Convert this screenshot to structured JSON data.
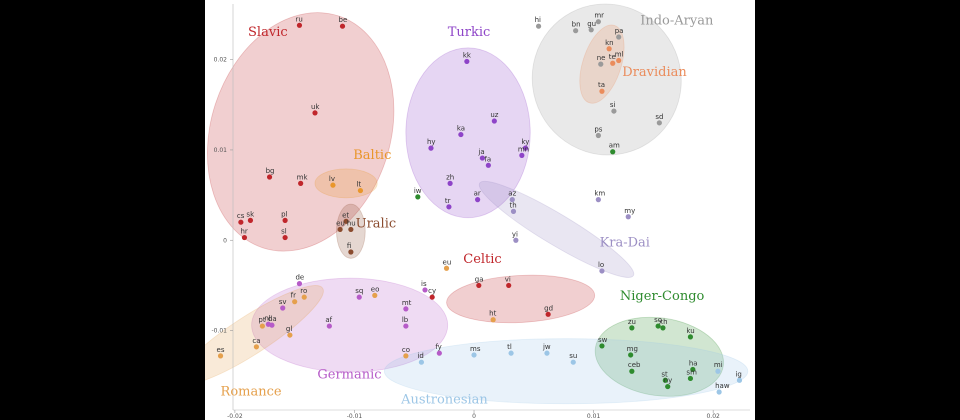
{
  "colors": {
    "Slavic": "#c0262b",
    "Baltic": "#e9962b",
    "Uralic": "#8a4b2e",
    "Turkic": "#8e44c8",
    "Indo-Aryan": "#9a9a9a",
    "Dravidian": "#ea8c5c",
    "Kra-Dai": "#9c8fc4",
    "Celtic": "#c0262b",
    "Germanic": "#b65bc8",
    "Romance": "#e5a04c",
    "Niger-Congo": "#2e8b2e",
    "Austronesian": "#9cc6e6"
  },
  "chart_data": {
    "type": "scatter",
    "xlim": [
      -0.0225,
      0.0235
    ],
    "ylim": [
      -0.0199,
      0.0266
    ],
    "grid": false,
    "x_ticks": [
      {
        "value": -0.02,
        "label": "-0.02"
      },
      {
        "value": -0.01,
        "label": "-0.01"
      },
      {
        "value": 0,
        "label": "0"
      },
      {
        "value": 0.01,
        "label": "0.01"
      },
      {
        "value": 0.02,
        "label": "0.02"
      }
    ],
    "y_ticks": [
      {
        "value": 0.02,
        "label": "0.02"
      },
      {
        "value": 0.01,
        "label": "0.01"
      },
      {
        "value": 0,
        "label": "0"
      },
      {
        "value": -0.01,
        "label": "-0.01"
      }
    ],
    "groups": [
      {
        "name": "Slavic",
        "label_at": [
          -0.0189,
          0.0226
        ],
        "ellipse": {
          "cx": -0.0145,
          "cy": 0.012,
          "rx": 0.0075,
          "ry": 0.0135,
          "rotate": 18
        }
      },
      {
        "name": "Baltic",
        "label_at": [
          -0.0101,
          0.009
        ],
        "ellipse": {
          "cx": -0.0107,
          "cy": 0.0063,
          "rx": 0.0026,
          "ry": 0.0016,
          "rotate": 0
        }
      },
      {
        "name": "Uralic",
        "label_at": [
          -0.0099,
          0.0014
        ],
        "ellipse": {
          "cx": -0.0103,
          "cy": 0.001,
          "rx": 0.0012,
          "ry": 0.003,
          "rotate": 0
        }
      },
      {
        "name": "Turkic",
        "label_at": [
          -0.0022,
          0.0226
        ],
        "ellipse": {
          "cx": -0.0005,
          "cy": 0.0119,
          "rx": 0.0052,
          "ry": 0.0094,
          "rotate": 0
        }
      },
      {
        "name": "Indo-Aryan",
        "label_at": [
          0.0139,
          0.0239
        ],
        "ellipse": {
          "cx": 0.0111,
          "cy": 0.0178,
          "rx": 0.0062,
          "ry": 0.0084,
          "rotate": -28
        }
      },
      {
        "name": "Dravidian",
        "label_at": [
          0.0124,
          0.0182
        ],
        "ellipse": {
          "cx": 0.0107,
          "cy": 0.0195,
          "rx": 0.0016,
          "ry": 0.0045,
          "rotate": 18
        }
      },
      {
        "name": "Kra-Dai",
        "label_at": [
          0.0105,
          -0.0007
        ],
        "ellipse": {
          "cx": 0.0069,
          "cy": 0.0012,
          "rx": 0.0075,
          "ry": 0.0017,
          "rotate": 31
        }
      },
      {
        "name": "Celtic",
        "label_at": [
          -0.0009,
          -0.0025
        ],
        "ellipse": {
          "cx": 0.0039,
          "cy": -0.0065,
          "rx": 0.0062,
          "ry": 0.0026,
          "rotate": -3
        }
      },
      {
        "name": "Germanic",
        "label_at": [
          -0.0131,
          -0.0153
        ],
        "ellipse": {
          "cx": -0.0104,
          "cy": -0.0094,
          "rx": 0.0082,
          "ry": 0.0052,
          "rotate": 0
        }
      },
      {
        "name": "Romance",
        "label_at": [
          -0.0212,
          -0.0172
        ],
        "ellipse": {
          "cx": -0.0187,
          "cy": -0.0105,
          "rx": 0.0072,
          "ry": 0.0021,
          "rotate": -33
        }
      },
      {
        "name": "Niger-Congo",
        "label_at": [
          0.0122,
          -0.0066
        ],
        "ellipse": {
          "cx": 0.0155,
          "cy": -0.0129,
          "rx": 0.0054,
          "ry": 0.0043,
          "rotate": 8
        }
      },
      {
        "name": "Austronesian",
        "label_at": [
          -0.0061,
          -0.0181
        ],
        "ellipse": {
          "cx": 0.0077,
          "cy": -0.0145,
          "rx": 0.0152,
          "ry": 0.0036,
          "rotate": 0
        }
      }
    ],
    "points": [
      {
        "label": "ru",
        "x": -0.0146,
        "y": 0.0238,
        "group": "Slavic"
      },
      {
        "label": "be",
        "x": -0.011,
        "y": 0.0237,
        "group": "Slavic"
      },
      {
        "label": "uk",
        "x": -0.0133,
        "y": 0.0141,
        "group": "Slavic"
      },
      {
        "label": "bg",
        "x": -0.0171,
        "y": 0.007,
        "group": "Slavic"
      },
      {
        "label": "mk",
        "x": -0.0145,
        "y": 0.0063,
        "group": "Slavic"
      },
      {
        "label": "cs",
        "x": -0.0195,
        "y": 0.002,
        "group": "Slavic"
      },
      {
        "label": "sk",
        "x": -0.0187,
        "y": 0.0022,
        "group": "Slavic"
      },
      {
        "label": "pl",
        "x": -0.0158,
        "y": 0.0022,
        "group": "Slavic"
      },
      {
        "label": "hr",
        "x": -0.0192,
        "y": 0.0003,
        "group": "Slavic"
      },
      {
        "label": "sl",
        "x": -0.0158,
        "y": 0.0003,
        "group": "Slavic"
      },
      {
        "label": "lv",
        "x": -0.0118,
        "y": 0.0061,
        "group": "Baltic"
      },
      {
        "label": "lt",
        "x": -0.0095,
        "y": 0.0055,
        "group": "Baltic"
      },
      {
        "label": "et",
        "x": -0.0107,
        "y": 0.0021,
        "group": "Uralic"
      },
      {
        "label": "hu",
        "x": -0.0103,
        "y": 0.0012,
        "group": "Uralic"
      },
      {
        "label": "eu",
        "x": -0.0112,
        "y": 0.0012,
        "group": "Uralic"
      },
      {
        "label": "fi",
        "x": -0.0103,
        "y": -0.0013,
        "group": "Uralic"
      },
      {
        "label": "kk",
        "x": -0.0006,
        "y": 0.0198,
        "group": "Turkic"
      },
      {
        "label": "uz",
        "x": 0.0017,
        "y": 0.0132,
        "group": "Turkic"
      },
      {
        "label": "ka",
        "x": -0.0011,
        "y": 0.0117,
        "group": "Turkic"
      },
      {
        "label": "hy",
        "x": -0.0036,
        "y": 0.0102,
        "group": "Turkic"
      },
      {
        "label": "ky",
        "x": 0.0043,
        "y": 0.0102,
        "group": "Turkic"
      },
      {
        "label": "mn",
        "x": 0.004,
        "y": 0.0094,
        "group": "Turkic"
      },
      {
        "label": "ja",
        "x": 0.0007,
        "y": 0.0091,
        "group": "Turkic"
      },
      {
        "label": "fa",
        "x": 0.0012,
        "y": 0.0083,
        "group": "Turkic"
      },
      {
        "label": "zh",
        "x": -0.002,
        "y": 0.0063,
        "group": "Turkic"
      },
      {
        "label": "ar",
        "x": 0.0003,
        "y": 0.0045,
        "group": "Turkic"
      },
      {
        "label": "tr",
        "x": -0.0021,
        "y": 0.0037,
        "group": "Turkic"
      },
      {
        "label": "hi",
        "x": 0.0054,
        "y": 0.0237,
        "group": "Indo-Aryan"
      },
      {
        "label": "mr",
        "x": 0.0104,
        "y": 0.0242,
        "group": "Indo-Aryan"
      },
      {
        "label": "bn",
        "x": 0.0085,
        "y": 0.0232,
        "group": "Indo-Aryan"
      },
      {
        "label": "gu",
        "x": 0.0098,
        "y": 0.0233,
        "group": "Indo-Aryan"
      },
      {
        "label": "pa",
        "x": 0.0121,
        "y": 0.0225,
        "group": "Indo-Aryan"
      },
      {
        "label": "si",
        "x": 0.0117,
        "y": 0.0143,
        "group": "Indo-Aryan"
      },
      {
        "label": "sd",
        "x": 0.0155,
        "y": 0.013,
        "group": "Indo-Aryan"
      },
      {
        "label": "ps",
        "x": 0.0104,
        "y": 0.0116,
        "group": "Indo-Aryan"
      },
      {
        "label": "kn",
        "x": 0.0113,
        "y": 0.0212,
        "group": "Dravidian"
      },
      {
        "label": "ne",
        "x": 0.0106,
        "y": 0.0195,
        "group": "Indo-Aryan"
      },
      {
        "label": "te",
        "x": 0.0116,
        "y": 0.0196,
        "group": "Dravidian"
      },
      {
        "label": "ml",
        "x": 0.0121,
        "y": 0.0199,
        "group": "Dravidian"
      },
      {
        "label": "ta",
        "x": 0.0107,
        "y": 0.0165,
        "group": "Dravidian"
      },
      {
        "label": "am",
        "x": 0.0116,
        "y": 0.0098,
        "group": "Niger-Congo"
      },
      {
        "label": "km",
        "x": 0.0104,
        "y": 0.0045,
        "group": "Kra-Dai"
      },
      {
        "label": "my",
        "x": 0.0129,
        "y": 0.0026,
        "group": "Kra-Dai"
      },
      {
        "label": "az",
        "x": 0.0032,
        "y": 0.0045,
        "group": "Kra-Dai"
      },
      {
        "label": "th",
        "x": 0.0033,
        "y": 0.0032,
        "group": "Kra-Dai"
      },
      {
        "label": "yi",
        "x": 0.0035,
        "y": 0,
        "group": "Kra-Dai"
      },
      {
        "label": "lo",
        "x": 0.0107,
        "y": -0.0034,
        "group": "Kra-Dai"
      },
      {
        "label": "iw",
        "x": -0.0047,
        "y": 0.0048,
        "group": "Niger-Congo"
      },
      {
        "label": "eu",
        "x": -0.0023,
        "y": -0.0031,
        "group": "Romance"
      },
      {
        "label": "ga",
        "x": 0.0004,
        "y": -0.005,
        "group": "Celtic"
      },
      {
        "label": "vi",
        "x": 0.0029,
        "y": -0.005,
        "group": "Celtic"
      },
      {
        "label": "is",
        "x": -0.0041,
        "y": -0.0055,
        "group": "Germanic"
      },
      {
        "label": "cy",
        "x": -0.0035,
        "y": -0.0063,
        "group": "Celtic"
      },
      {
        "label": "ht",
        "x": 0.0016,
        "y": -0.0088,
        "group": "Romance"
      },
      {
        "label": "gd",
        "x": 0.0062,
        "y": -0.0082,
        "group": "Celtic"
      },
      {
        "label": "de",
        "x": -0.0146,
        "y": -0.0048,
        "group": "Germanic"
      },
      {
        "label": "ro",
        "x": -0.0142,
        "y": -0.0063,
        "group": "Romance"
      },
      {
        "label": "fr",
        "x": -0.015,
        "y": -0.0068,
        "group": "Romance"
      },
      {
        "label": "sv",
        "x": -0.016,
        "y": -0.0075,
        "group": "Germanic"
      },
      {
        "label": "sq",
        "x": -0.0096,
        "y": -0.0063,
        "group": "Germanic"
      },
      {
        "label": "eo",
        "x": -0.0083,
        "y": -0.0061,
        "group": "Romance"
      },
      {
        "label": "mt",
        "x": -0.0057,
        "y": -0.0076,
        "group": "Germanic"
      },
      {
        "label": "pt",
        "x": -0.0177,
        "y": -0.0095,
        "group": "Romance"
      },
      {
        "label": "nl",
        "x": -0.0172,
        "y": -0.0093,
        "group": "Germanic"
      },
      {
        "label": "da",
        "x": -0.0169,
        "y": -0.0094,
        "group": "Germanic"
      },
      {
        "label": "af",
        "x": -0.0121,
        "y": -0.0095,
        "group": "Germanic"
      },
      {
        "label": "lb",
        "x": -0.0057,
        "y": -0.0095,
        "group": "Germanic"
      },
      {
        "label": "gl",
        "x": -0.0154,
        "y": -0.0105,
        "group": "Romance"
      },
      {
        "label": "ca",
        "x": -0.0182,
        "y": -0.0118,
        "group": "Romance"
      },
      {
        "label": "es",
        "x": -0.0212,
        "y": -0.0128,
        "group": "Romance"
      },
      {
        "label": "co",
        "x": -0.0057,
        "y": -0.0128,
        "group": "Romance"
      },
      {
        "label": "fy",
        "x": -0.0029,
        "y": -0.0125,
        "group": "Germanic"
      },
      {
        "label": "id",
        "x": -0.0044,
        "y": -0.0135,
        "group": "Austronesian"
      },
      {
        "label": "ms",
        "x": 0,
        "y": -0.0127,
        "group": "Austronesian"
      },
      {
        "label": "tl",
        "x": 0.0031,
        "y": -0.0125,
        "group": "Austronesian"
      },
      {
        "label": "jw",
        "x": 0.0061,
        "y": -0.0125,
        "group": "Austronesian"
      },
      {
        "label": "su",
        "x": 0.0083,
        "y": -0.0135,
        "group": "Austronesian"
      },
      {
        "label": "sw",
        "x": 0.0107,
        "y": -0.0117,
        "group": "Niger-Congo"
      },
      {
        "label": "zu",
        "x": 0.0132,
        "y": -0.0097,
        "group": "Niger-Congo"
      },
      {
        "label": "so",
        "x": 0.0154,
        "y": -0.0095,
        "group": "Niger-Congo"
      },
      {
        "label": "xh",
        "x": 0.0158,
        "y": -0.0097,
        "group": "Niger-Congo"
      },
      {
        "label": "ku",
        "x": 0.0181,
        "y": -0.0107,
        "group": "Niger-Congo"
      },
      {
        "label": "mg",
        "x": 0.0131,
        "y": -0.0127,
        "group": "Niger-Congo"
      },
      {
        "label": "ceb",
        "x": 0.0132,
        "y": -0.0145,
        "group": "Niger-Congo"
      },
      {
        "label": "ha",
        "x": 0.0183,
        "y": -0.0143,
        "group": "Niger-Congo"
      },
      {
        "label": "st",
        "x": 0.016,
        "y": -0.0155,
        "group": "Niger-Congo"
      },
      {
        "label": "ny",
        "x": 0.0162,
        "y": -0.0162,
        "group": "Niger-Congo"
      },
      {
        "label": "sm",
        "x": 0.0181,
        "y": -0.0153,
        "group": "Niger-Congo"
      },
      {
        "label": "mi",
        "x": 0.0204,
        "y": -0.0145,
        "group": "Austronesian"
      },
      {
        "label": "ig",
        "x": 0.0222,
        "y": -0.0155,
        "group": "Austronesian"
      },
      {
        "label": "haw",
        "x": 0.0205,
        "y": -0.0168,
        "group": "Austronesian"
      }
    ]
  }
}
